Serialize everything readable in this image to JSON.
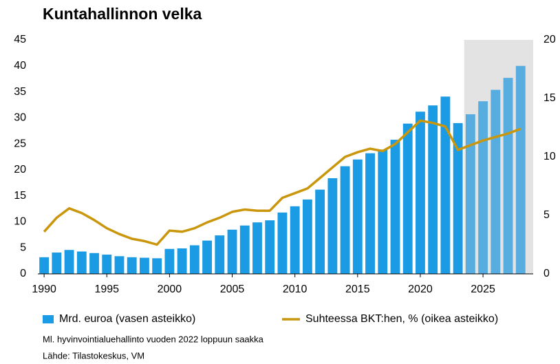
{
  "chart_data": {
    "type": "bar_line",
    "title": "Kuntahallinnon velka",
    "notes": [
      "Ml. hyvinvointialuehallinto vuoden 2022 loppuun saakka",
      "Lähde: Tilastokeskus, VM"
    ],
    "x": [
      1990,
      1991,
      1992,
      1993,
      1994,
      1995,
      1996,
      1997,
      1998,
      1999,
      2000,
      2001,
      2002,
      2003,
      2004,
      2005,
      2006,
      2007,
      2008,
      2009,
      2010,
      2011,
      2012,
      2013,
      2014,
      2015,
      2016,
      2017,
      2018,
      2019,
      2020,
      2021,
      2022,
      2023,
      2024,
      2025,
      2026,
      2027,
      2028
    ],
    "series": [
      {
        "name": "Mrd. euroa (vasen asteikko)",
        "kind": "bar",
        "color": "#1b9be3",
        "shaded_color": "#58ade0",
        "values": [
          3.2,
          4.1,
          4.6,
          4.3,
          4.0,
          3.7,
          3.4,
          3.2,
          3.1,
          3.0,
          4.8,
          4.9,
          5.5,
          6.4,
          7.4,
          8.5,
          9.3,
          9.9,
          10.3,
          11.8,
          13.0,
          14.3,
          16.2,
          18.4,
          20.7,
          22.0,
          23.2,
          23.9,
          25.8,
          28.9,
          31.2,
          32.4,
          34.1,
          29.0,
          30.7,
          33.2,
          35.4,
          37.7,
          40.0
        ]
      },
      {
        "name": "Suhteessa BKT:hen, % (oikea asteikko)",
        "kind": "line",
        "axis": "y2",
        "color": "#c9960c",
        "values": [
          3.6,
          4.8,
          5.6,
          5.2,
          4.6,
          3.9,
          3.4,
          3.0,
          2.8,
          2.5,
          3.7,
          3.6,
          3.9,
          4.4,
          4.8,
          5.3,
          5.5,
          5.4,
          5.4,
          6.5,
          6.9,
          7.3,
          8.2,
          9.1,
          10.0,
          10.4,
          10.7,
          10.5,
          11.1,
          12.1,
          13.1,
          12.9,
          12.6,
          10.6,
          11.0,
          11.4,
          11.7,
          12.0,
          12.4
        ]
      }
    ],
    "xlim": [
      1989.5,
      2029
    ],
    "xticks": [
      1990,
      1995,
      2000,
      2005,
      2010,
      2015,
      2020,
      2025
    ],
    "ylim": [
      0,
      45
    ],
    "yticks": [
      0,
      5,
      10,
      15,
      20,
      25,
      30,
      35,
      40,
      45
    ],
    "y2lim": [
      0,
      20
    ],
    "y2ticks": [
      0,
      5,
      10,
      15,
      20
    ],
    "shaded_xrange": [
      2023.5,
      2029
    ],
    "shade_color": "#e3e3e3"
  }
}
